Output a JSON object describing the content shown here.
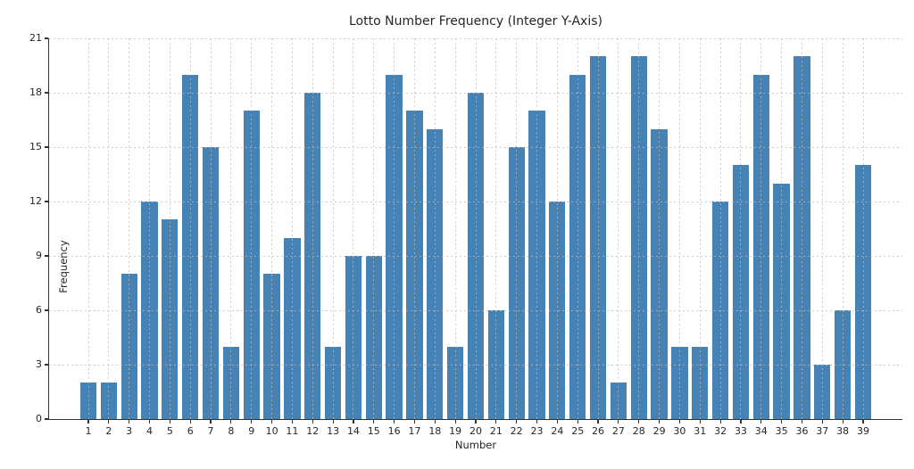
{
  "chart_data": {
    "type": "bar",
    "title": "Lotto Number Frequency (Integer Y-Axis)",
    "xlabel": "Number",
    "ylabel": "Frequency",
    "categories": [
      "1",
      "2",
      "3",
      "4",
      "5",
      "6",
      "7",
      "8",
      "9",
      "10",
      "11",
      "12",
      "13",
      "14",
      "15",
      "16",
      "17",
      "18",
      "19",
      "20",
      "21",
      "22",
      "23",
      "24",
      "25",
      "26",
      "27",
      "28",
      "29",
      "30",
      "31",
      "32",
      "33",
      "34",
      "35",
      "36",
      "37",
      "38",
      "39"
    ],
    "values": [
      2,
      2,
      8,
      12,
      11,
      19,
      15,
      4,
      17,
      8,
      10,
      18,
      4,
      9,
      9,
      19,
      17,
      16,
      4,
      18,
      6,
      15,
      17,
      12,
      19,
      20,
      2,
      20,
      16,
      4,
      4,
      12,
      14,
      19,
      13,
      20,
      3,
      6,
      14
    ],
    "ylim": [
      0,
      21
    ],
    "yticks": [
      0,
      3,
      6,
      9,
      12,
      15,
      18,
      21
    ],
    "legend": "none",
    "grid": "dotted gridlines at every x and y tick, drawn above bars",
    "bar_color": "#4682b4",
    "grid_color": "#bbbbbb",
    "axis_color": "#333333",
    "text_color": "#262626",
    "background_color": "#ffffff"
  }
}
